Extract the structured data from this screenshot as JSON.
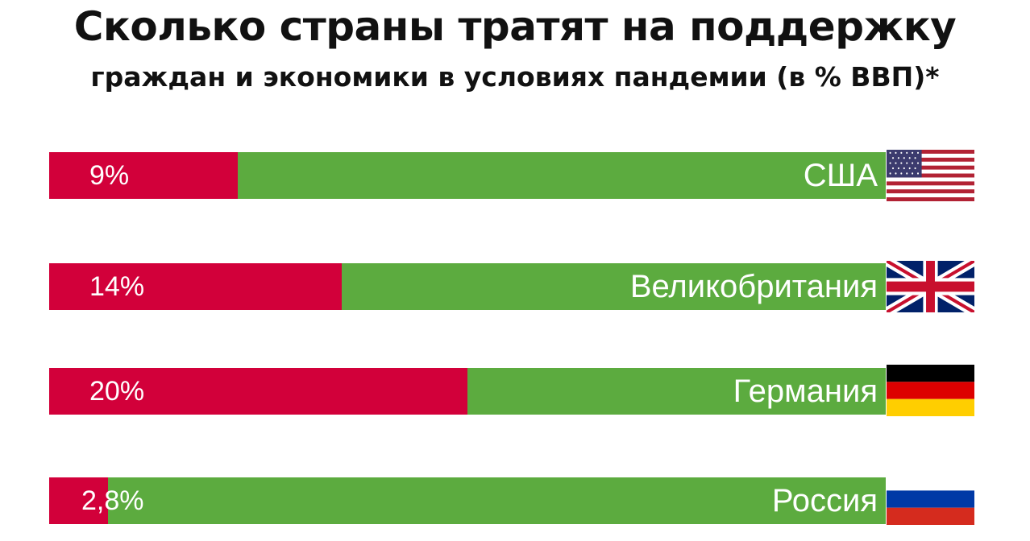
{
  "chart_data": {
    "type": "bar",
    "title": "Сколько страны тратят на поддержку",
    "subtitle": "граждан и экономики в условиях пандемии (в % ВВП)*",
    "categories": [
      "США",
      "Великобритания",
      "Германия",
      "Россия"
    ],
    "values": [
      9,
      14,
      20,
      2.8
    ],
    "value_labels": [
      "9%",
      "14%",
      "20%",
      "2,8%"
    ],
    "unit": "% ВВП",
    "xlim": [
      0,
      40
    ],
    "orientation": "horizontal",
    "grid": false,
    "legend": "none",
    "flags": [
      "usa-flag-icon",
      "uk-flag-icon",
      "germany-flag-icon",
      "russia-flag-icon"
    ],
    "colors": {
      "value": "#d2003a",
      "track": "#5cab3f"
    }
  }
}
